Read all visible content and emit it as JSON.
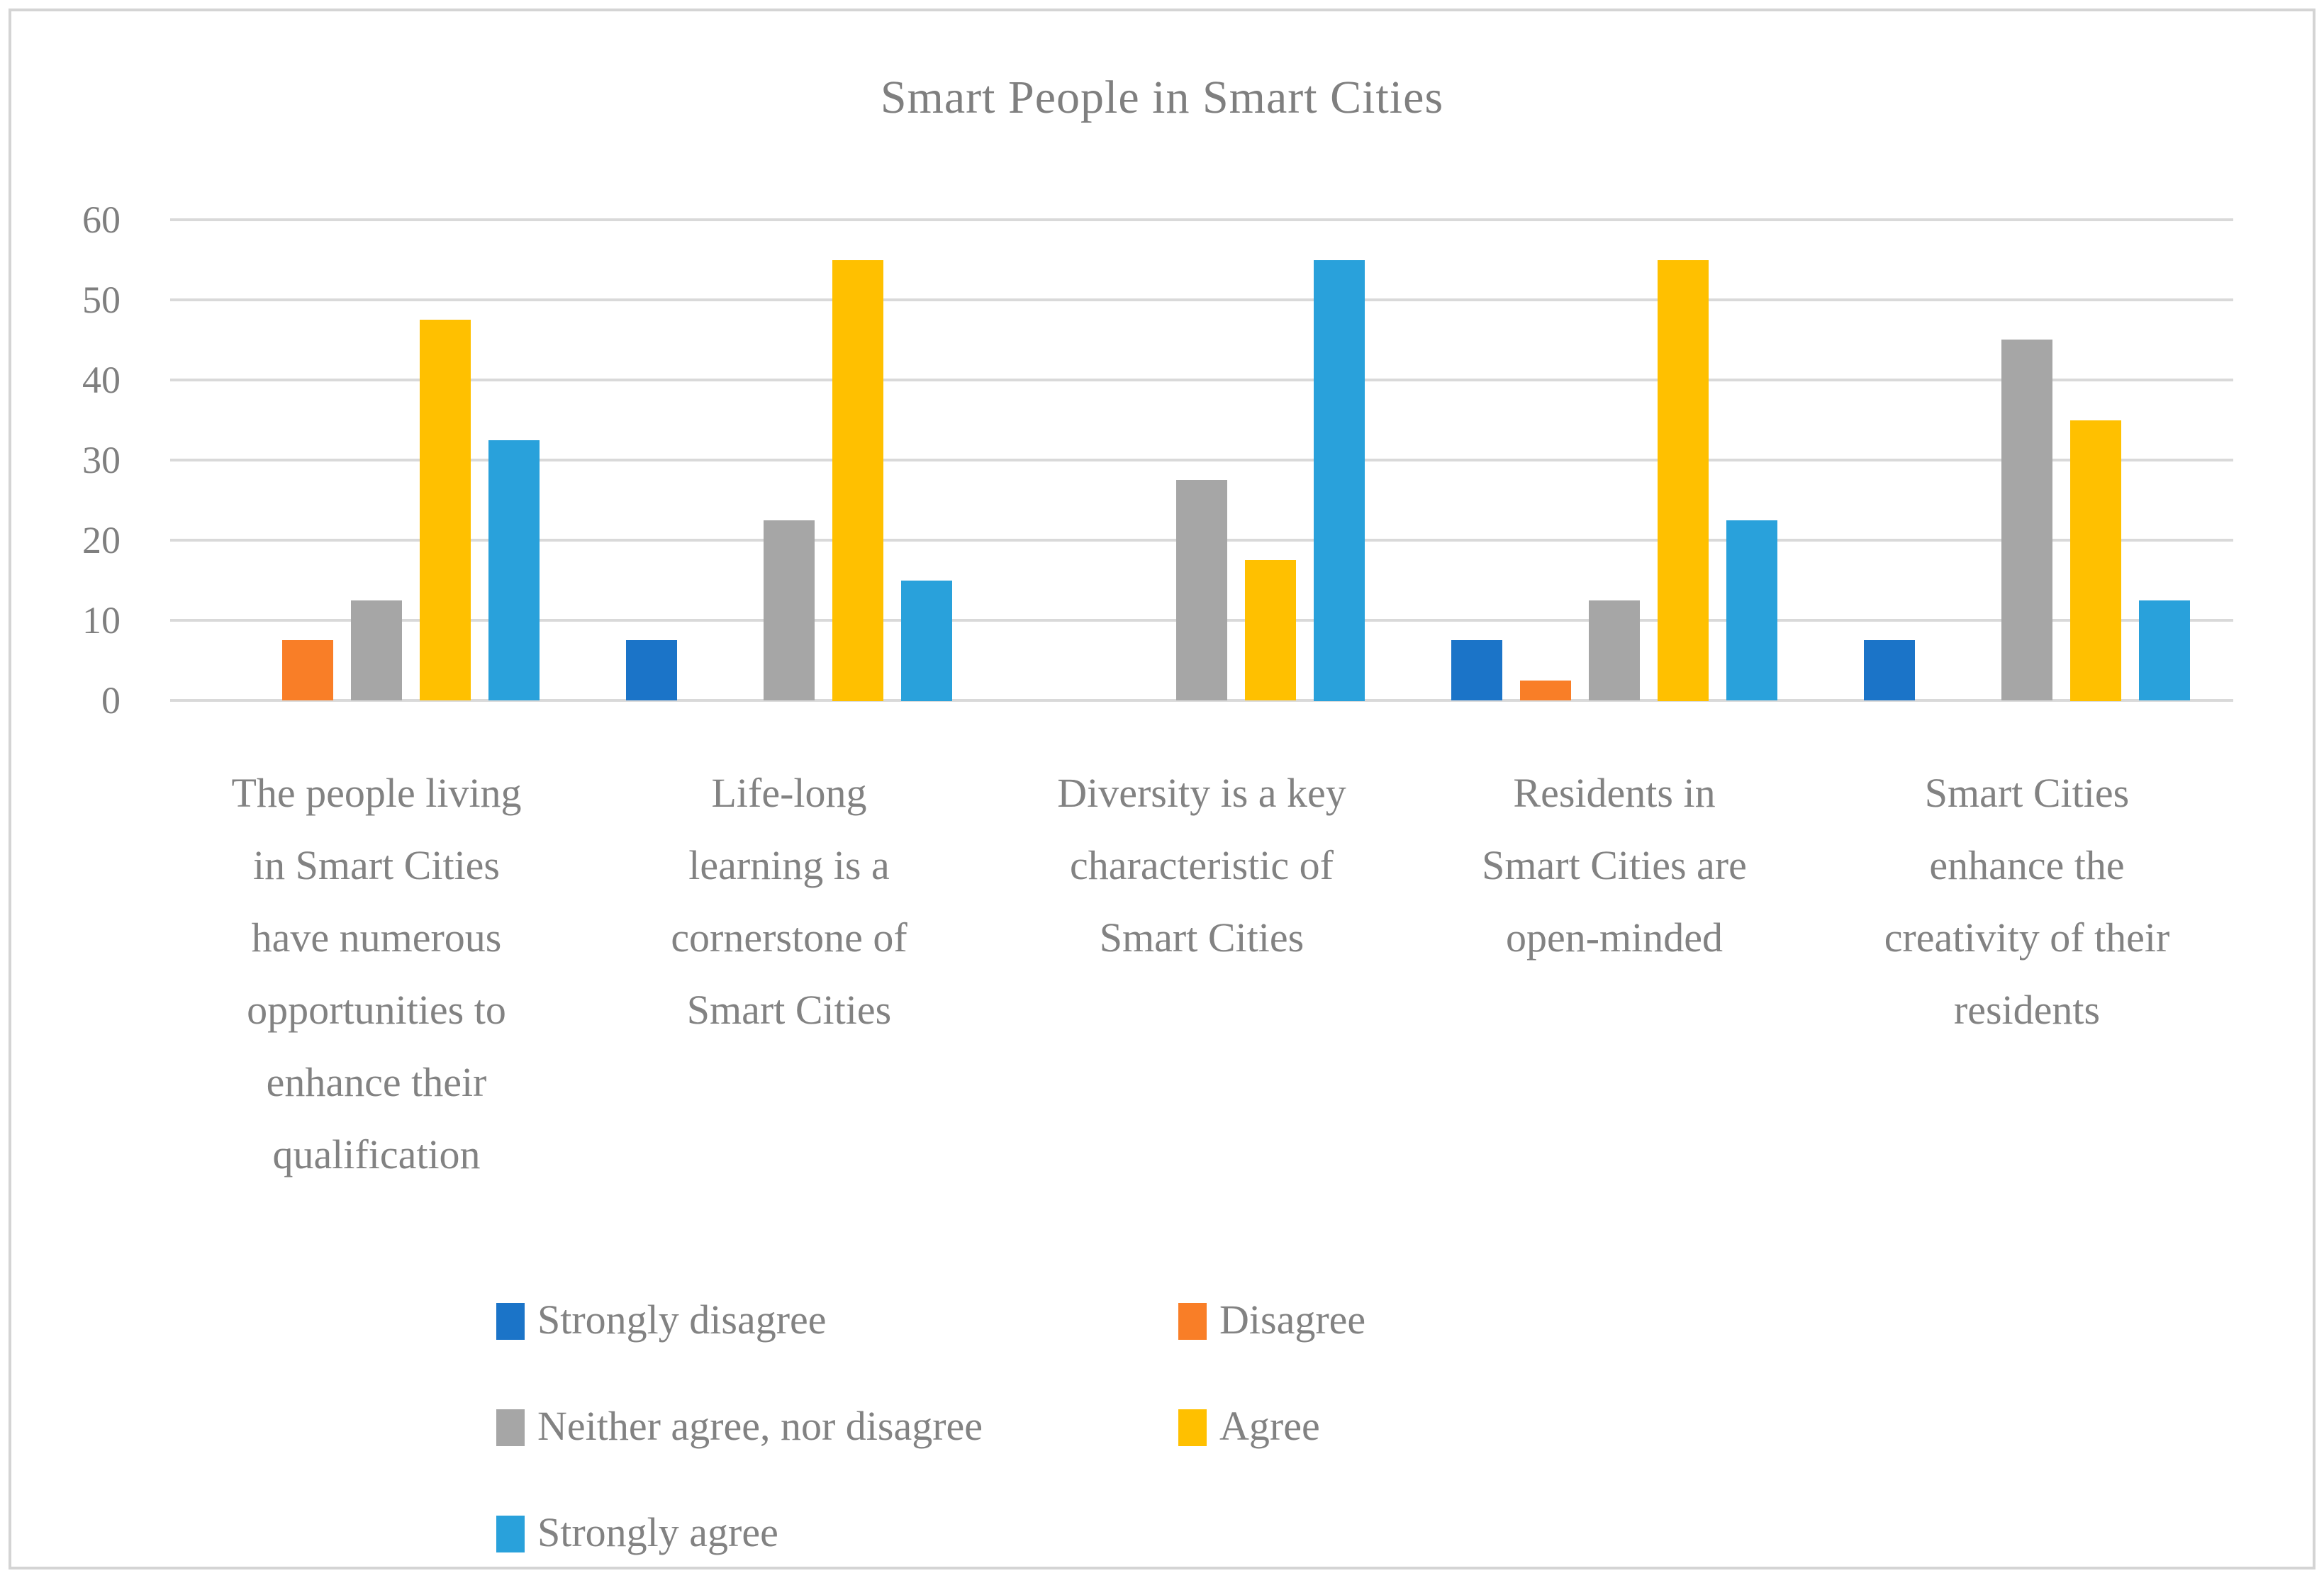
{
  "chart_data": {
    "type": "bar",
    "title": "Smart People in Smart Cities",
    "categories": [
      "The people living in Smart Cities have numerous opportunities to enhance their qualification",
      "Life-long learning is a cornerstone of Smart Cities",
      "Diversity is a key characteristic of Smart Cities",
      "Residents in Smart Cities are open-minded",
      "Smart Cities enhance the creativity of their residents"
    ],
    "category_label_lines": [
      [
        "The people living",
        "in Smart Cities",
        "have numerous",
        "opportunities to",
        "enhance their",
        "qualification"
      ],
      [
        "Life-long",
        "learning is a",
        "cornerstone of",
        "Smart Cities"
      ],
      [
        "Diversity is a key",
        "characteristic of",
        "Smart Cities"
      ],
      [
        "Residents in",
        "Smart Cities are",
        "open-minded"
      ],
      [
        "Smart Cities",
        "enhance the",
        "creativity of their",
        "residents"
      ]
    ],
    "series": [
      {
        "name": "Strongly disagree",
        "color": "#1b74c8",
        "values": [
          0,
          7.5,
          0,
          7.5,
          7.5
        ]
      },
      {
        "name": "Disagree",
        "color": "#f97e27",
        "values": [
          7.5,
          0,
          0,
          2.5,
          0
        ]
      },
      {
        "name": "Neither agree, nor disagree",
        "color": "#a6a6a6",
        "values": [
          12.5,
          22.5,
          27.5,
          12.5,
          45
        ]
      },
      {
        "name": "Agree",
        "color": "#ffc000",
        "values": [
          47.5,
          55,
          17.5,
          55,
          35
        ]
      },
      {
        "name": "Strongly agree",
        "color": "#29a1db",
        "values": [
          32.5,
          15,
          55,
          22.5,
          12.5
        ]
      }
    ],
    "ylim": [
      0,
      60
    ],
    "y_ticks": [
      0,
      10,
      20,
      30,
      40,
      50,
      60
    ],
    "grid": true,
    "legend_position": "bottom",
    "colors": {
      "gridline": "#d9d9d9",
      "text": "#7f7f7f",
      "frame_border": "#d4d4d4"
    }
  }
}
